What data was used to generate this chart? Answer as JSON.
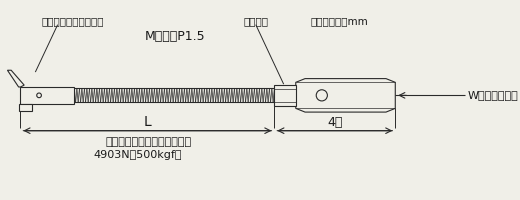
{
  "bg_color": "#f0efe8",
  "line_color": "#2a2a2a",
  "text_color": "#1a1a1a",
  "label_flip_anchor": "フリップアンカー本体",
  "label_bush": "ブッシュ",
  "label_m10": "M１０　P1.5",
  "label_hex": "六角対辺１７mm",
  "label_w12": "W１／２－１２",
  "label_L": "L",
  "label_40": "4０",
  "label_strength1": "最大引張強度（ネジ部破断）",
  "label_strength2": "4903N（500kgf）",
  "fig_width": 5.2,
  "fig_height": 2.0,
  "dpi": 100
}
